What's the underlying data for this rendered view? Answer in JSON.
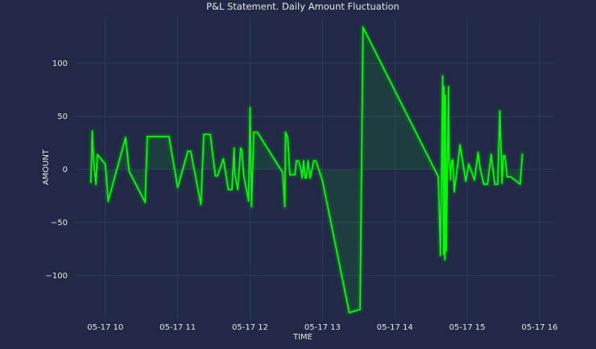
{
  "chart_data": {
    "type": "line",
    "title": "P&L Statement. Daily Amount Fluctuation",
    "xlabel": "TIME",
    "ylabel": "AMOUNT",
    "x_unit": "hours",
    "xlim": [
      9.58,
      16.2
    ],
    "ylim": [
      -142,
      143
    ],
    "x_ticks": [
      {
        "value": 10,
        "label": "05-17 10"
      },
      {
        "value": 11,
        "label": "05-17 11"
      },
      {
        "value": 12,
        "label": "05-17 12"
      },
      {
        "value": 13,
        "label": "05-17 13"
      },
      {
        "value": 14,
        "label": "05-17 14"
      },
      {
        "value": 15,
        "label": "05-17 15"
      },
      {
        "value": 16,
        "label": "05-17 16"
      }
    ],
    "y_ticks": [
      {
        "value": -100,
        "label": "−100"
      },
      {
        "value": -50,
        "label": "−50"
      },
      {
        "value": 0,
        "label": "0"
      },
      {
        "value": 50,
        "label": "50"
      },
      {
        "value": 100,
        "label": "100"
      }
    ],
    "grid": true,
    "line_color": "#08F708",
    "fill_color": "#08F708",
    "series": [
      {
        "x": [
          9.8,
          9.82,
          9.84,
          9.87,
          9.89,
          10.0,
          10.04,
          10.28,
          10.33,
          10.55,
          10.58,
          10.88,
          11.0,
          11.14,
          11.18,
          11.32,
          11.36,
          11.45,
          11.52,
          11.55,
          11.63,
          11.7,
          11.75,
          11.78,
          11.79,
          11.83,
          11.87,
          11.89,
          11.91,
          11.95,
          11.98,
          12.0,
          12.02,
          12.05,
          12.1,
          12.45,
          12.48,
          12.49,
          12.52,
          12.55,
          12.62,
          12.64,
          12.67,
          12.7,
          12.72,
          12.74,
          12.76,
          12.78,
          12.8,
          12.83,
          12.88,
          12.91,
          13.0,
          13.37,
          13.52,
          13.56,
          14.6,
          14.63,
          14.66,
          14.67,
          14.68,
          14.69,
          14.7,
          14.71,
          14.74,
          14.75,
          14.76,
          14.77,
          14.78,
          14.79,
          14.8,
          14.82,
          14.9,
          14.98,
          15.02,
          15.1,
          15.15,
          15.18,
          15.23,
          15.28,
          15.33,
          15.38,
          15.42,
          15.45,
          15.48,
          15.5,
          15.52,
          15.55,
          15.6,
          15.73,
          15.76
        ],
        "y": [
          -12,
          36,
          6,
          -14,
          14,
          5,
          -30,
          30,
          -2,
          -31,
          31,
          31,
          -17,
          17,
          17,
          -33,
          33,
          33,
          -6,
          -6,
          10,
          -19,
          -19,
          20,
          -5,
          -19,
          20,
          18,
          -5,
          -19,
          -30,
          58,
          -35,
          35,
          35,
          -3,
          -35,
          35,
          30,
          -5,
          -5,
          8,
          8,
          1,
          -8,
          8,
          -8,
          -8,
          8,
          -8,
          8,
          8,
          -11,
          -135,
          -132,
          134,
          -7,
          -81,
          88,
          -80,
          78,
          -85,
          70,
          -77,
          78,
          5,
          1,
          -10,
          8,
          3,
          9,
          -21,
          23,
          -11,
          5,
          -10,
          16,
          0,
          -14,
          -14,
          14,
          -14,
          -14,
          55,
          -13,
          13,
          13,
          -7,
          -7,
          -14,
          14
        ]
      }
    ]
  }
}
